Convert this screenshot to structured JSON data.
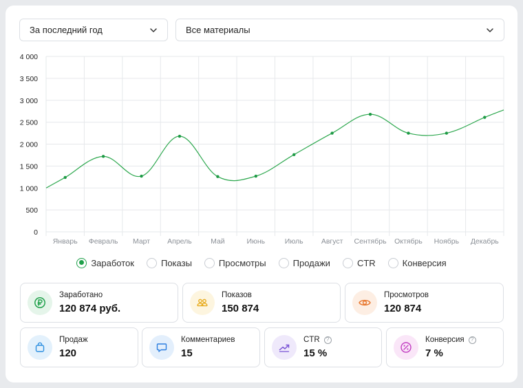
{
  "filters": {
    "period": "За последний год",
    "materials": "Все материалы"
  },
  "colors": {
    "accent": "#1fa04a",
    "line": "#2ea84f",
    "grid": "#e6e8eb"
  },
  "chart_data": {
    "type": "line",
    "categories": [
      "Январь",
      "Февраль",
      "Март",
      "Апрель",
      "Май",
      "Июнь",
      "Июль",
      "Август",
      "Сентябрь",
      "Октябрь",
      "Ноябрь",
      "Декабрь"
    ],
    "values": [
      1240,
      1720,
      1270,
      2180,
      1260,
      1270,
      1760,
      2250,
      2680,
      2250,
      2250,
      2610
    ],
    "start_value": 1000,
    "end_value": 2780,
    "ylim": [
      0,
      4000
    ],
    "yticks": [
      0,
      500,
      1000,
      1500,
      2000,
      2500,
      3000,
      3500,
      4000
    ],
    "ytick_labels": [
      "0",
      "500",
      "1 000",
      "1 500",
      "2 000",
      "2 500",
      "3 000",
      "3 500",
      "4 000"
    ],
    "grid": true
  },
  "legend": [
    {
      "label": "Заработок",
      "active": true
    },
    {
      "label": "Показы",
      "active": false
    },
    {
      "label": "Просмотры",
      "active": false
    },
    {
      "label": "Продажи",
      "active": false
    },
    {
      "label": "CTR",
      "active": false
    },
    {
      "label": "Конверсия",
      "active": false
    }
  ],
  "stats": {
    "earned": {
      "label": "Заработано",
      "value": "120 874 руб.",
      "icon": "ruble-icon",
      "color": "#1fa04a"
    },
    "impressions": {
      "label": "Показов",
      "value": "150 874",
      "icon": "people-icon",
      "color": "#e6a817"
    },
    "views": {
      "label": "Просмотров",
      "value": "120 874",
      "icon": "eye-icon",
      "color": "#e8772e"
    },
    "sales": {
      "label": "Продаж",
      "value": "120",
      "icon": "bag-icon",
      "color": "#2d8fe0"
    },
    "comments": {
      "label": "Комментариев",
      "value": "15",
      "icon": "comment-icon",
      "color": "#2d7fe0"
    },
    "ctr": {
      "label": "CTR",
      "value": "15 %",
      "icon": "trend-icon",
      "color": "#7b55d6"
    },
    "conversion": {
      "label": "Конверсия",
      "value": "7 %",
      "icon": "percent-icon",
      "color": "#c23fc2"
    }
  }
}
